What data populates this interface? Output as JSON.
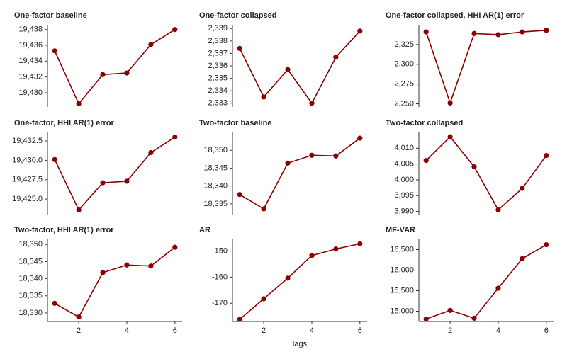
{
  "chart_data": [
    {
      "type": "line",
      "title": "One-factor baseline",
      "x": [
        1,
        2,
        3,
        4,
        5,
        6
      ],
      "color": "#8b0000",
      "values": [
        19435.3,
        19428.6,
        19432.3,
        19432.5,
        19436.1,
        19438.0
      ],
      "xlim": [
        0.7,
        6.3
      ],
      "ylim": [
        19428.2,
        19438.6
      ],
      "yticks": [
        {
          "value": 19430,
          "label": "19,430"
        },
        {
          "value": 19432,
          "label": "19,432"
        },
        {
          "value": 19434,
          "label": "19,434"
        },
        {
          "value": 19436,
          "label": "19,436"
        },
        {
          "value": 19438,
          "label": "19,438"
        }
      ]
    },
    {
      "type": "line",
      "title": "One-factor collapsed",
      "x": [
        1,
        2,
        3,
        4,
        5,
        6
      ],
      "color": "#8b0000",
      "values": [
        2337.4,
        2333.5,
        2335.7,
        2333.0,
        2336.7,
        2338.8
      ],
      "xlim": [
        0.7,
        6.3
      ],
      "ylim": [
        2332.7,
        2339.3
      ],
      "yticks": [
        {
          "value": 2333,
          "label": "2,333"
        },
        {
          "value": 2334,
          "label": "2,334"
        },
        {
          "value": 2335,
          "label": "2,335"
        },
        {
          "value": 2336,
          "label": "2,336"
        },
        {
          "value": 2337,
          "label": "2,337"
        },
        {
          "value": 2338,
          "label": "2,338"
        },
        {
          "value": 2339,
          "label": "2,339"
        }
      ]
    },
    {
      "type": "line",
      "title": "One-factor collapsed, HHI AR(1) error",
      "x": [
        1,
        2,
        3,
        4,
        5,
        6
      ],
      "color": "#8b0000",
      "values": [
        2341,
        2251,
        2339,
        2337.5,
        2341,
        2343
      ],
      "xlim": [
        0.7,
        6.3
      ],
      "ylim": [
        2246,
        2350
      ],
      "yticks": [
        {
          "value": 2250,
          "label": "2,250"
        },
        {
          "value": 2275,
          "label": "2,275"
        },
        {
          "value": 2300,
          "label": "2,300"
        },
        {
          "value": 2325,
          "label": "2,325"
        }
      ]
    },
    {
      "type": "line",
      "title": "One-factor, HHI AR(1) error",
      "x": [
        1,
        2,
        3,
        4,
        5,
        6
      ],
      "color": "#8b0000",
      "values": [
        19430.1,
        19423.6,
        19427.1,
        19427.3,
        19431.0,
        19433.0
      ],
      "xlim": [
        0.7,
        6.3
      ],
      "ylim": [
        19423.0,
        19433.6
      ],
      "yticks": [
        {
          "value": 19425,
          "label": "19,425.0"
        },
        {
          "value": 19427.5,
          "label": "19,427.5"
        },
        {
          "value": 19430,
          "label": "19,430.0"
        },
        {
          "value": 19432.5,
          "label": "19,432.5"
        }
      ]
    },
    {
      "type": "line",
      "title": "Two-factor baseline",
      "x": [
        1,
        2,
        3,
        4,
        5,
        6
      ],
      "color": "#8b0000",
      "values": [
        18337.6,
        18333.6,
        18346.4,
        18348.6,
        18348.4,
        18353.4
      ],
      "xlim": [
        0.7,
        6.3
      ],
      "ylim": [
        18332,
        18355
      ],
      "yticks": [
        {
          "value": 18335,
          "label": "18,335"
        },
        {
          "value": 18340,
          "label": "18,340"
        },
        {
          "value": 18345,
          "label": "18,345"
        },
        {
          "value": 18350,
          "label": "18,350"
        }
      ]
    },
    {
      "type": "line",
      "title": "Two-factor collapsed",
      "x": [
        1,
        2,
        3,
        4,
        5,
        6
      ],
      "color": "#8b0000",
      "values": [
        4006.1,
        4013.6,
        4004.1,
        3990.5,
        3997.3,
        4007.7
      ],
      "xlim": [
        0.7,
        6.3
      ],
      "ylim": [
        3989,
        4015
      ],
      "yticks": [
        {
          "value": 3990,
          "label": "3,990"
        },
        {
          "value": 3995,
          "label": "3,995"
        },
        {
          "value": 4000,
          "label": "4,000"
        },
        {
          "value": 4005,
          "label": "4,005"
        },
        {
          "value": 4010,
          "label": "4,010"
        }
      ]
    },
    {
      "type": "line",
      "title": "Two-factor, HHI AR(1) error",
      "x": [
        1,
        2,
        3,
        4,
        5,
        6
      ],
      "color": "#8b0000",
      "values": [
        18332.8,
        18328.8,
        18341.8,
        18344.0,
        18343.7,
        18349.2
      ],
      "xlim": [
        0.7,
        6.3
      ],
      "ylim": [
        18327.5,
        18351.5
      ],
      "xticks": [
        2,
        4,
        6
      ],
      "yticks": [
        {
          "value": 18330,
          "label": "18,330"
        },
        {
          "value": 18335,
          "label": "18,335"
        },
        {
          "value": 18340,
          "label": "18,340"
        },
        {
          "value": 18345,
          "label": "18,345"
        },
        {
          "value": 18350,
          "label": "18,350"
        }
      ]
    },
    {
      "type": "line",
      "title": "AR",
      "x": [
        1,
        2,
        3,
        4,
        5,
        6
      ],
      "color": "#8b0000",
      "values": [
        -176.2,
        -168.3,
        -160.4,
        -151.7,
        -149.2,
        -147.2
      ],
      "xlim": [
        0.7,
        6.3
      ],
      "ylim": [
        -177,
        -145.5
      ],
      "xticks": [
        2,
        4,
        6
      ],
      "xlabel": "lags",
      "yticks": [
        -170,
        -160,
        -150
      ]
    },
    {
      "type": "line",
      "title": "MF-VAR",
      "x": [
        1,
        2,
        3,
        4,
        5,
        6
      ],
      "color": "#8b0000",
      "values": [
        14810,
        15020,
        14830,
        15560,
        16280,
        16620
      ],
      "xlim": [
        0.7,
        6.3
      ],
      "ylim": [
        14750,
        16750
      ],
      "xticks": [
        2,
        4,
        6
      ],
      "yticks": [
        {
          "value": 15000,
          "label": "15,000"
        },
        {
          "value": 15500,
          "label": "15,500"
        },
        {
          "value": 16000,
          "label": "16,000"
        },
        {
          "value": 16500,
          "label": "16,500"
        }
      ]
    }
  ]
}
